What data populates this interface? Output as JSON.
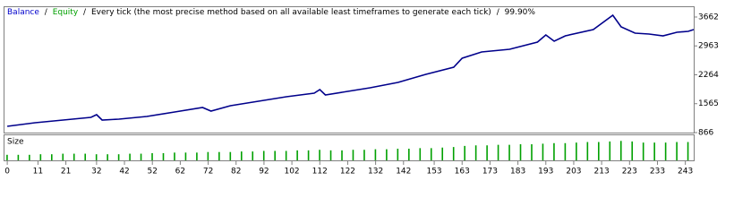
{
  "chart_data": [
    {
      "type": "line",
      "series": [
        {
          "name": "Balance",
          "color": "#00008b",
          "x": [
            0,
            10,
            20,
            30,
            32,
            34,
            40,
            50,
            60,
            70,
            73,
            80,
            90,
            100,
            110,
            112,
            114,
            120,
            130,
            140,
            150,
            160,
            163,
            170,
            180,
            190,
            193,
            196,
            200,
            210,
            217,
            220,
            225,
            230,
            235,
            240,
            244,
            246
          ],
          "values": [
            1018,
            1104,
            1169,
            1234,
            1300,
            1169,
            1191,
            1256,
            1364,
            1473,
            1386,
            1516,
            1625,
            1733,
            1820,
            1906,
            1776,
            1841,
            1950,
            2080,
            2275,
            2448,
            2665,
            2817,
            2882,
            3055,
            3228,
            3077,
            3207,
            3358,
            3705,
            3423,
            3272,
            3250,
            3207,
            3294,
            3315,
            3358
          ]
        },
        {
          "name": "Equity",
          "color": "#00a000"
        }
      ],
      "separator": "/",
      "subtitle": "Every tick (the most precise method based on all available least timeframes to generate each tick)",
      "quality": "99.90%",
      "xlim": [
        -1,
        246
      ],
      "ylim": [
        866,
        3900
      ],
      "yticks": [
        866,
        1565,
        2264,
        2963,
        3662
      ]
    },
    {
      "type": "bar",
      "title": "Size",
      "color": "#00a000",
      "x": [
        0,
        4,
        8,
        12,
        16,
        20,
        24,
        28,
        32,
        36,
        40,
        44,
        48,
        52,
        56,
        60,
        64,
        68,
        72,
        76,
        80,
        84,
        88,
        92,
        96,
        100,
        104,
        108,
        112,
        116,
        120,
        124,
        128,
        132,
        136,
        140,
        144,
        148,
        152,
        156,
        160,
        164,
        168,
        172,
        176,
        180,
        184,
        188,
        192,
        196,
        200,
        204,
        208,
        212,
        216,
        220,
        224,
        228,
        232,
        236,
        240,
        244
      ],
      "values": [
        0.1,
        0.1,
        0.1,
        0.11,
        0.11,
        0.12,
        0.12,
        0.12,
        0.11,
        0.11,
        0.11,
        0.12,
        0.12,
        0.13,
        0.13,
        0.14,
        0.14,
        0.14,
        0.15,
        0.15,
        0.15,
        0.16,
        0.16,
        0.17,
        0.17,
        0.17,
        0.18,
        0.18,
        0.19,
        0.18,
        0.18,
        0.19,
        0.19,
        0.2,
        0.2,
        0.21,
        0.21,
        0.22,
        0.22,
        0.23,
        0.24,
        0.26,
        0.27,
        0.27,
        0.28,
        0.28,
        0.29,
        0.29,
        0.3,
        0.31,
        0.31,
        0.32,
        0.33,
        0.33,
        0.34,
        0.35,
        0.34,
        0.32,
        0.32,
        0.32,
        0.33,
        0.33
      ],
      "xlim": [
        -1,
        246
      ],
      "xticks": [
        0,
        11,
        21,
        32,
        42,
        52,
        62,
        72,
        82,
        92,
        102,
        112,
        122,
        132,
        142,
        153,
        163,
        173,
        183,
        193,
        203,
        213,
        223,
        233,
        243
      ]
    }
  ]
}
